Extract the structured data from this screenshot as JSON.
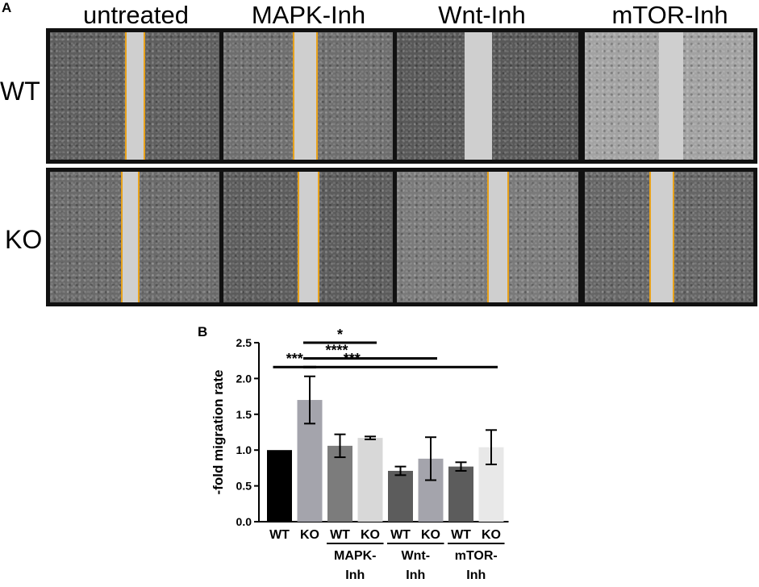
{
  "panel_a": {
    "letter": "A",
    "columns": [
      "untreated",
      "MAPK-Inh",
      "Wnt-Inh",
      "mTOR-Inh"
    ],
    "rows": [
      "WT",
      "KO"
    ],
    "tile_shades": {
      "WT": [
        "#5e5e5e",
        "#6e6e6e",
        "#585858",
        "#a2a2a2"
      ],
      "KO": [
        "#6a6a6a",
        "#5c5c5c",
        "#7a7a7a",
        "#666666"
      ]
    },
    "scratch_color": "#cfcfcf",
    "border_line_color": "#e8a21b"
  },
  "panel_b": {
    "letter": "B"
  },
  "chart_data": {
    "type": "bar",
    "ylabel": "-fold migration rate",
    "ylim": [
      0.0,
      2.5
    ],
    "yticks": [
      "0.0",
      "0.5",
      "1.0",
      "1.5",
      "2.0",
      "2.5"
    ],
    "categories": [
      "WT",
      "KO",
      "WT",
      "KO",
      "WT",
      "KO",
      "WT",
      "KO"
    ],
    "groups": [
      {
        "label": [
          "MAPK-",
          "Inh"
        ],
        "bars": [
          2,
          3
        ]
      },
      {
        "label": [
          "Wnt-",
          "Inh"
        ],
        "bars": [
          4,
          5
        ]
      },
      {
        "label": [
          "mTOR-",
          "Inh"
        ],
        "bars": [
          6,
          7
        ]
      }
    ],
    "values": [
      1.0,
      1.7,
      1.06,
      1.17,
      0.71,
      0.88,
      0.77,
      1.04
    ],
    "errors": [
      0.0,
      0.33,
      0.16,
      0.02,
      0.06,
      0.3,
      0.06,
      0.24
    ],
    "colors": [
      "#000000",
      "#a4a4ac",
      "#7c7c7c",
      "#d8d8d8",
      "#5c5c5c",
      "#a4a4ac",
      "#5c5c5c",
      "#e8e8e8"
    ],
    "significance": [
      {
        "from": 0,
        "to": 1,
        "label": "***",
        "y": 2.16
      },
      {
        "from": 1,
        "to": 3,
        "label": "*",
        "y": 2.5
      },
      {
        "from": 1,
        "to": 5,
        "label": "****",
        "y": 2.28
      },
      {
        "from": 1,
        "to": 7,
        "label": "***",
        "y": 2.16
      }
    ]
  }
}
